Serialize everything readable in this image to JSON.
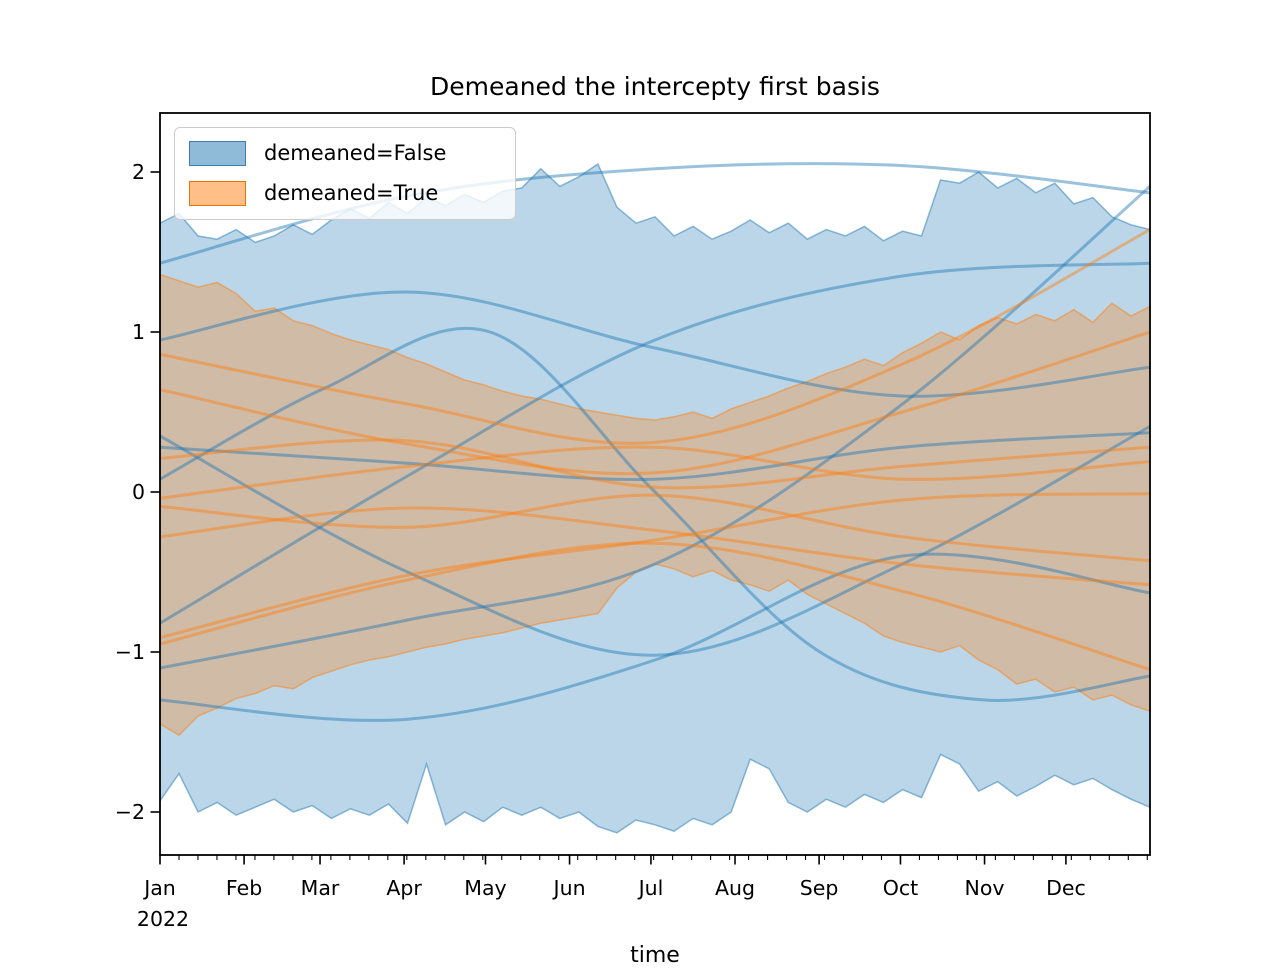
{
  "title": "Demeaned the intercepty first basis",
  "axes": {
    "xlabel": "time",
    "x_year_label": "2022",
    "x_month_labels": [
      "Jan",
      "Feb",
      "Mar",
      "Apr",
      "May",
      "Jun",
      "Jul",
      "Aug",
      "Sep",
      "Oct",
      "Nov",
      "Dec"
    ],
    "y_tick_labels": [
      "2",
      "1",
      "0",
      "−1",
      "−2"
    ],
    "y_tick_values": [
      2,
      1,
      0,
      -1,
      -2
    ]
  },
  "legend": {
    "items": [
      {
        "label": "demeaned=False",
        "color": "#1f77b4"
      },
      {
        "label": "demeaned=True",
        "color": "#ff7f0e"
      }
    ]
  },
  "colors": {
    "blue": "#1f77b4",
    "orange": "#ff7f0e",
    "band_alpha": 0.3,
    "edge_alpha": 0.5,
    "line_alpha": 0.45,
    "text": "#000000",
    "spine": "#000000",
    "legend_border": "#cccccc"
  },
  "chart_data": {
    "type": "area",
    "title": "Demeaned the intercepty first basis",
    "xlabel": "time",
    "x_axis": {
      "unit": "date",
      "start": "Jan 2022",
      "end": "Dec 2022",
      "days_total": 365,
      "month_start_days": [
        0,
        31,
        59,
        90,
        120,
        151,
        181,
        212,
        243,
        273,
        304,
        334
      ],
      "minor_tick_interval_days": 7
    },
    "ylim": [
      -2.27,
      2.37
    ],
    "bands": [
      {
        "series": "demeaned=False",
        "color": "#1f77b4",
        "weekly_top": [
          1.68,
          1.74,
          1.6,
          1.58,
          1.64,
          1.56,
          1.6,
          1.67,
          1.61,
          1.7,
          1.77,
          1.71,
          1.81,
          1.74,
          1.84,
          1.79,
          1.86,
          1.81,
          1.88,
          1.9,
          2.02,
          1.91,
          1.97,
          2.05,
          1.78,
          1.68,
          1.72,
          1.6,
          1.66,
          1.58,
          1.63,
          1.7,
          1.62,
          1.68,
          1.58,
          1.64,
          1.6,
          1.66,
          1.57,
          1.63,
          1.6,
          1.95,
          1.93,
          2.0,
          1.9,
          1.96,
          1.87,
          1.93,
          1.8,
          1.84,
          1.72,
          1.67,
          1.64
        ],
        "weekly_bottom": [
          -1.93,
          -1.76,
          -2.0,
          -1.94,
          -2.02,
          -1.97,
          -1.92,
          -2.0,
          -1.96,
          -2.04,
          -1.98,
          -2.02,
          -1.95,
          -2.07,
          -1.7,
          -2.08,
          -2.0,
          -2.06,
          -1.97,
          -2.02,
          -1.97,
          -2.04,
          -2.0,
          -2.09,
          -2.13,
          -2.05,
          -2.08,
          -2.12,
          -2.04,
          -2.08,
          -2.0,
          -1.67,
          -1.73,
          -1.94,
          -2.0,
          -1.92,
          -1.97,
          -1.89,
          -1.94,
          -1.86,
          -1.91,
          -1.64,
          -1.7,
          -1.87,
          -1.81,
          -1.9,
          -1.84,
          -1.77,
          -1.83,
          -1.79,
          -1.86,
          -1.92,
          -1.97
        ]
      },
      {
        "series": "demeaned=True",
        "color": "#ff7f0e",
        "weekly_top": [
          1.36,
          1.32,
          1.28,
          1.31,
          1.24,
          1.13,
          1.15,
          1.07,
          1.04,
          0.99,
          0.95,
          0.92,
          0.89,
          0.84,
          0.8,
          0.75,
          0.7,
          0.67,
          0.63,
          0.6,
          0.58,
          0.55,
          0.52,
          0.5,
          0.48,
          0.46,
          0.45,
          0.47,
          0.5,
          0.46,
          0.52,
          0.56,
          0.6,
          0.65,
          0.69,
          0.74,
          0.78,
          0.83,
          0.79,
          0.87,
          0.93,
          1.0,
          0.95,
          1.04,
          1.09,
          1.05,
          1.11,
          1.07,
          1.14,
          1.06,
          1.18,
          1.1,
          1.16
        ],
        "weekly_bottom": [
          -1.45,
          -1.52,
          -1.4,
          -1.35,
          -1.29,
          -1.26,
          -1.21,
          -1.23,
          -1.16,
          -1.12,
          -1.08,
          -1.05,
          -1.03,
          -1.0,
          -0.97,
          -0.95,
          -0.92,
          -0.9,
          -0.88,
          -0.85,
          -0.82,
          -0.8,
          -0.78,
          -0.76,
          -0.6,
          -0.5,
          -0.45,
          -0.48,
          -0.53,
          -0.49,
          -0.55,
          -0.58,
          -0.62,
          -0.55,
          -0.64,
          -0.7,
          -0.76,
          -0.82,
          -0.9,
          -0.94,
          -0.97,
          -1.0,
          -0.96,
          -1.05,
          -1.11,
          -1.2,
          -1.17,
          -1.25,
          -1.22,
          -1.3,
          -1.27,
          -1.33,
          -1.37
        ]
      }
    ],
    "sample_lines": [
      {
        "series": "demeaned=False",
        "color": "#1f77b4",
        "y_points": [
          1.43,
          1.85,
          2.02,
          2.04,
          1.87
        ]
      },
      {
        "series": "demeaned=False",
        "color": "#1f77b4",
        "y_points": [
          -1.1,
          -0.8,
          -0.45,
          0.55,
          1.91
        ]
      },
      {
        "series": "demeaned=False",
        "color": "#1f77b4",
        "y_points": [
          0.95,
          1.25,
          0.9,
          0.6,
          0.78
        ]
      },
      {
        "series": "demeaned=False",
        "color": "#1f77b4",
        "y_points": [
          0.35,
          -0.5,
          -1.02,
          -0.45,
          0.41
        ]
      },
      {
        "series": "demeaned=False",
        "color": "#1f77b4",
        "y_points": [
          0.28,
          0.18,
          0.08,
          0.28,
          0.37
        ]
      },
      {
        "series": "demeaned=False",
        "color": "#1f77b4",
        "y_points": [
          0.08,
          0.65,
          1.0,
          0.0,
          -1.0,
          -1.3,
          -1.15
        ]
      },
      {
        "series": "demeaned=False",
        "color": "#1f77b4",
        "y_points": [
          -0.82,
          0.1,
          0.95,
          1.35,
          1.43
        ]
      },
      {
        "series": "demeaned=False",
        "color": "#1f77b4",
        "y_points": [
          -1.3,
          -1.42,
          -1.05,
          -0.4,
          -0.63
        ]
      },
      {
        "series": "demeaned=True",
        "color": "#ff7f0e",
        "y_points": [
          0.86,
          0.55,
          0.31,
          0.8,
          1.64
        ]
      },
      {
        "series": "demeaned=True",
        "color": "#ff7f0e",
        "y_points": [
          0.64,
          0.3,
          0.12,
          0.5,
          1.0
        ]
      },
      {
        "series": "demeaned=True",
        "color": "#ff7f0e",
        "y_points": [
          0.21,
          0.32,
          0.03,
          0.16,
          0.28
        ]
      },
      {
        "series": "demeaned=True",
        "color": "#ff7f0e",
        "y_points": [
          -0.04,
          0.16,
          0.28,
          0.08,
          0.19
        ]
      },
      {
        "series": "demeaned=True",
        "color": "#ff7f0e",
        "y_points": [
          -0.09,
          -0.22,
          -0.02,
          -0.28,
          -0.43
        ]
      },
      {
        "series": "demeaned=True",
        "color": "#ff7f0e",
        "y_points": [
          -0.28,
          -0.1,
          -0.24,
          -0.45,
          -0.58
        ]
      },
      {
        "series": "demeaned=True",
        "color": "#ff7f0e",
        "y_points": [
          -0.91,
          -0.52,
          -0.3,
          -0.05,
          -0.01
        ]
      },
      {
        "series": "demeaned=True",
        "color": "#ff7f0e",
        "y_points": [
          -0.95,
          -0.55,
          -0.32,
          -0.62,
          -1.11
        ]
      }
    ],
    "legend_entries": [
      "demeaned=False",
      "demeaned=True"
    ],
    "grid": false,
    "legend_position": "upper left"
  }
}
